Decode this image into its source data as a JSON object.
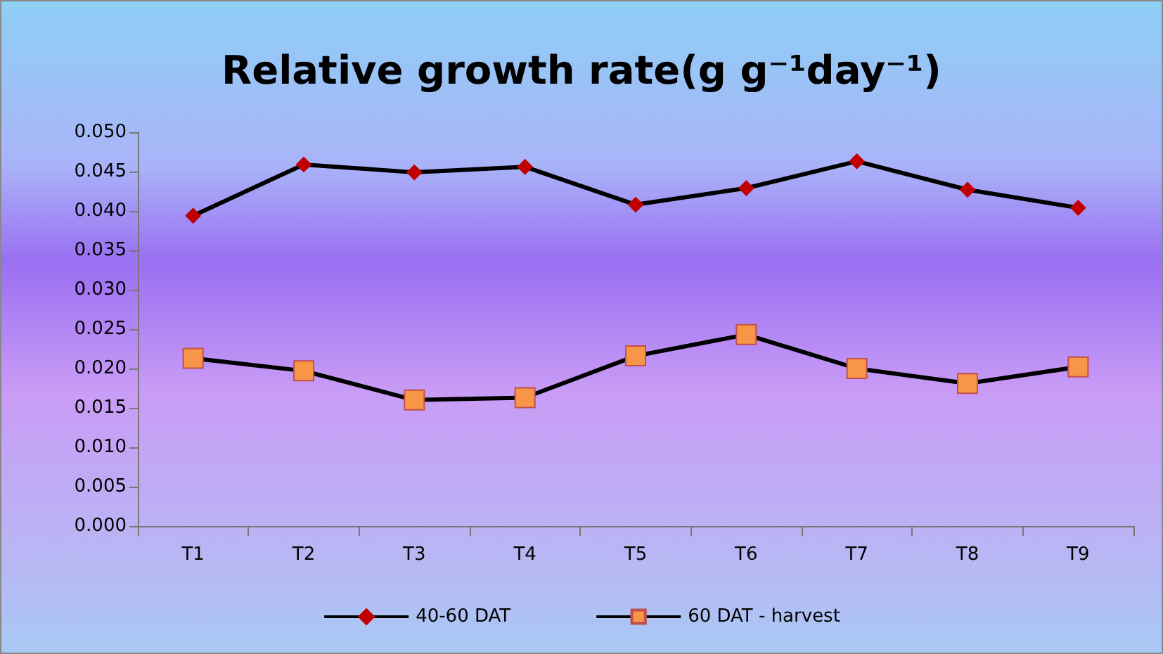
{
  "chart_data": {
    "type": "line",
    "title": "Relative growth rate(g g⁻¹day⁻¹)",
    "categories": [
      "T1",
      "T2",
      "T3",
      "T4",
      "T5",
      "T6",
      "T7",
      "T8",
      "T9"
    ],
    "series": [
      {
        "name": "40-60 DAT",
        "color": "#c00000",
        "marker": "diamond",
        "values": [
          0.0394,
          0.0459,
          0.0449,
          0.0456,
          0.0408,
          0.0429,
          0.0463,
          0.0427,
          0.0404
        ]
      },
      {
        "name": "60 DAT - harvest",
        "color": "#f79646",
        "marker": "square",
        "values": [
          0.0213,
          0.0197,
          0.016,
          0.0163,
          0.0216,
          0.0243,
          0.02,
          0.0181,
          0.0202
        ]
      }
    ],
    "ylim": [
      0,
      0.05
    ],
    "yticks": [
      {
        "value": 0,
        "label": "0.000"
      },
      {
        "value": 0.005,
        "label": "0.005"
      },
      {
        "value": 0.01,
        "label": "0.010"
      },
      {
        "value": 0.015,
        "label": "0.015"
      },
      {
        "value": 0.02,
        "label": "0.020"
      },
      {
        "value": 0.025,
        "label": "0.025"
      },
      {
        "value": 0.03,
        "label": "0.030"
      },
      {
        "value": 0.035,
        "label": "0.035"
      },
      {
        "value": 0.04,
        "label": "0.040"
      },
      {
        "value": 0.045,
        "label": "0.045"
      },
      {
        "value": 0.05,
        "label": "0.050"
      }
    ],
    "grid": false,
    "legend": "bottom",
    "line_style": "solid"
  }
}
